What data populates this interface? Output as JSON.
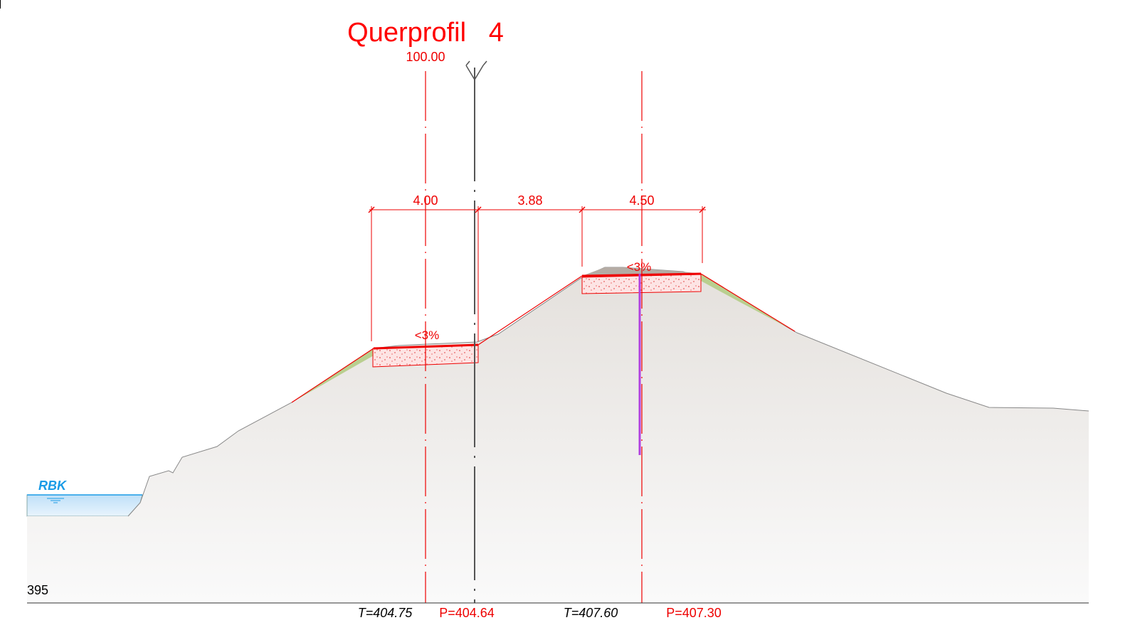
{
  "title": "Querprofil   4",
  "station": "100.00",
  "dimensions": [
    "4.00",
    "3.88",
    "4.50"
  ],
  "slopes": [
    "<3%",
    "<3%"
  ],
  "water_label": "RBK",
  "datum": "395",
  "bottom_labels": [
    "T=404.75",
    "P=404.64",
    "T=407.60",
    "P=407.30"
  ]
}
